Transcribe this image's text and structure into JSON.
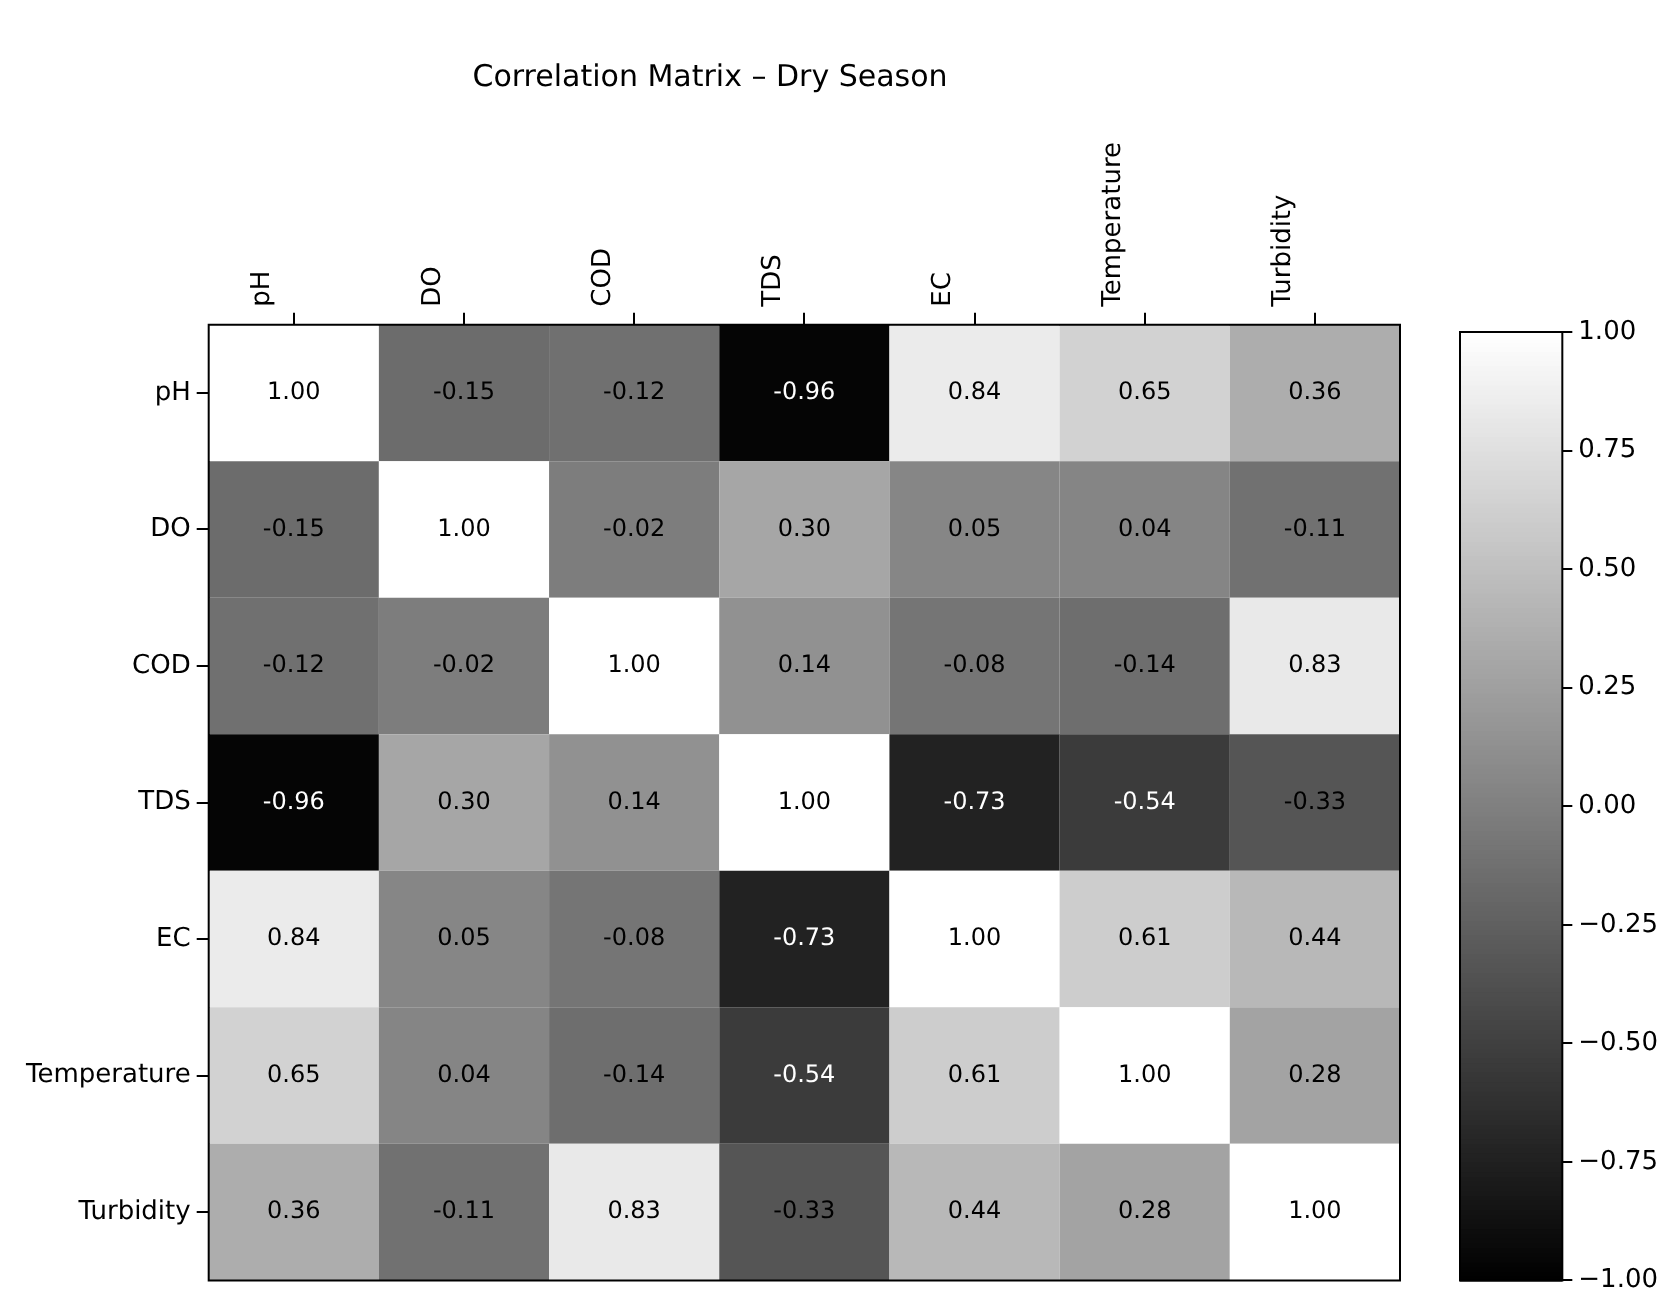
{
  "chart_data": {
    "type": "heatmap",
    "title": "Correlation Matrix – Dry Season",
    "categories": [
      "pH",
      "DO",
      "COD",
      "TDS",
      "EC",
      "Temperature",
      "Turbidity"
    ],
    "y_categories": [
      "pH",
      "DO",
      "COD",
      "TDS",
      "EC",
      "Temperature",
      "Turbidity"
    ],
    "cells": [
      [
        1.0,
        -0.15,
        -0.12,
        -0.96,
        0.84,
        0.65,
        0.36
      ],
      [
        -0.15,
        1.0,
        -0.02,
        0.3,
        0.05,
        0.04,
        -0.11
      ],
      [
        -0.12,
        -0.02,
        1.0,
        0.14,
        -0.08,
        -0.14,
        0.83
      ],
      [
        -0.96,
        0.3,
        0.14,
        1.0,
        -0.73,
        -0.54,
        -0.33
      ],
      [
        0.84,
        0.05,
        -0.08,
        -0.73,
        1.0,
        0.61,
        0.44
      ],
      [
        0.65,
        0.04,
        -0.14,
        -0.54,
        0.61,
        1.0,
        0.28
      ],
      [
        0.36,
        -0.11,
        0.83,
        -0.33,
        0.44,
        0.28,
        1.0
      ]
    ],
    "cell_labels": [
      [
        "1.00",
        "-0.15",
        "-0.12",
        "-0.96",
        "0.84",
        "0.65",
        "0.36"
      ],
      [
        "-0.15",
        "1.00",
        "-0.02",
        "0.30",
        "0.05",
        "0.04",
        "-0.11"
      ],
      [
        "-0.12",
        "-0.02",
        "1.00",
        "0.14",
        "-0.08",
        "-0.14",
        "0.83"
      ],
      [
        "-0.96",
        "0.30",
        "0.14",
        "1.00",
        "-0.73",
        "-0.54",
        "-0.33"
      ],
      [
        "0.84",
        "0.05",
        "-0.08",
        "-0.73",
        "1.00",
        "0.61",
        "0.44"
      ],
      [
        "0.65",
        "0.04",
        "-0.14",
        "-0.54",
        "0.61",
        "1.00",
        "0.28"
      ],
      [
        "0.36",
        "-0.11",
        "0.83",
        "-0.33",
        "0.44",
        "0.28",
        "1.00"
      ]
    ],
    "clim": [
      -1,
      1
    ],
    "cticks": [
      {
        "value": -1,
        "label": "−1.00"
      },
      {
        "value": -0.75,
        "label": "−0.75"
      },
      {
        "value": -0.5,
        "label": "−0.50"
      },
      {
        "value": -0.25,
        "label": "−0.25"
      },
      {
        "value": 0,
        "label": "0.00"
      },
      {
        "value": 0.25,
        "label": "0.25"
      },
      {
        "value": 0.5,
        "label": "0.50"
      },
      {
        "value": 0.75,
        "label": "0.75"
      },
      {
        "value": 1,
        "label": "1.00"
      }
    ]
  }
}
